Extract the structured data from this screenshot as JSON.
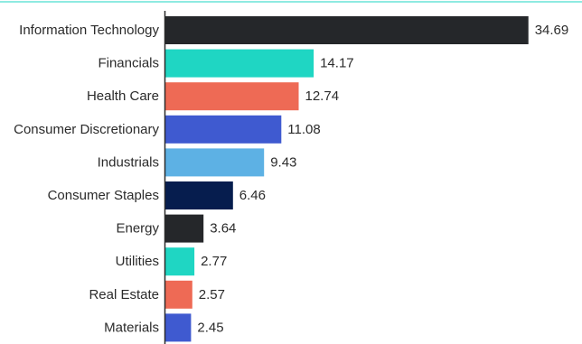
{
  "chart_data": {
    "type": "bar",
    "orientation": "horizontal",
    "categories": [
      "Information Technology",
      "Financials",
      "Health Care",
      "Consumer Discretionary",
      "Industrials",
      "Consumer Staples",
      "Energy",
      "Utilities",
      "Real Estate",
      "Materials"
    ],
    "values": [
      34.69,
      14.17,
      12.74,
      11.08,
      9.43,
      6.46,
      3.64,
      2.77,
      2.57,
      2.45
    ],
    "value_labels": [
      "34.69",
      "14.17",
      "12.74",
      "11.08",
      "9.43",
      "6.46",
      "3.64",
      "2.77",
      "2.57",
      "2.45"
    ],
    "bar_colors": [
      "#25272a",
      "#1fd6c3",
      "#ee6a55",
      "#3f5ad0",
      "#5db1e4",
      "#061d4e",
      "#25272a",
      "#1fd6c3",
      "#ee6a55",
      "#3f5ad0"
    ],
    "xlim": [
      0,
      35
    ],
    "grid": false,
    "legend": "none",
    "top_rule_color": "#1fd6c3",
    "axis_color": "#2b2b2b"
  }
}
